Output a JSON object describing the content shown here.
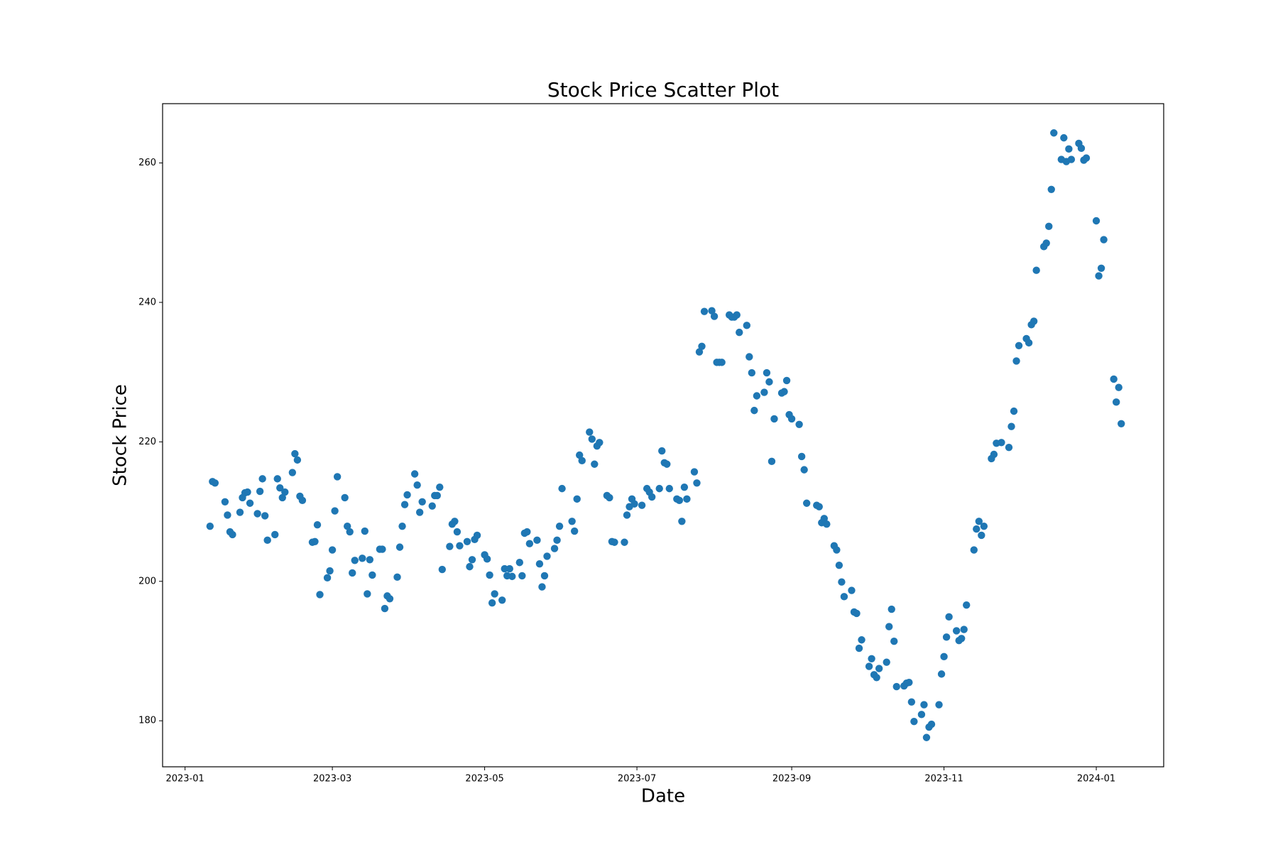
{
  "chart_data": {
    "type": "scatter",
    "title": "Stock Price Scatter Plot",
    "x_label": "Date",
    "y_label": "Stock Price",
    "color": "#1f77b4",
    "x": [
      "2023-01-11",
      "2023-01-12",
      "2023-01-13",
      "2023-01-17",
      "2023-01-18",
      "2023-01-19",
      "2023-01-20",
      "2023-01-23",
      "2023-01-24",
      "2023-01-25",
      "2023-01-26",
      "2023-01-27",
      "2023-01-30",
      "2023-01-31",
      "2023-02-01",
      "2023-02-02",
      "2023-02-03",
      "2023-02-06",
      "2023-02-07",
      "2023-02-08",
      "2023-02-09",
      "2023-02-10",
      "2023-02-13",
      "2023-02-14",
      "2023-02-15",
      "2023-02-16",
      "2023-02-17",
      "2023-02-21",
      "2023-02-22",
      "2023-02-23",
      "2023-02-24",
      "2023-02-27",
      "2023-02-28",
      "2023-03-01",
      "2023-03-02",
      "2023-03-03",
      "2023-03-06",
      "2023-03-07",
      "2023-03-08",
      "2023-03-09",
      "2023-03-10",
      "2023-03-13",
      "2023-03-14",
      "2023-03-15",
      "2023-03-16",
      "2023-03-17",
      "2023-03-20",
      "2023-03-21",
      "2023-03-22",
      "2023-03-23",
      "2023-03-24",
      "2023-03-27",
      "2023-03-28",
      "2023-03-29",
      "2023-03-30",
      "2023-03-31",
      "2023-04-03",
      "2023-04-04",
      "2023-04-05",
      "2023-04-06",
      "2023-04-10",
      "2023-04-11",
      "2023-04-12",
      "2023-04-13",
      "2023-04-14",
      "2023-04-17",
      "2023-04-18",
      "2023-04-19",
      "2023-04-20",
      "2023-04-21",
      "2023-04-24",
      "2023-04-25",
      "2023-04-26",
      "2023-04-27",
      "2023-04-28",
      "2023-05-01",
      "2023-05-02",
      "2023-05-03",
      "2023-05-04",
      "2023-05-05",
      "2023-05-08",
      "2023-05-09",
      "2023-05-10",
      "2023-05-11",
      "2023-05-12",
      "2023-05-15",
      "2023-05-16",
      "2023-05-17",
      "2023-05-18",
      "2023-05-19",
      "2023-05-22",
      "2023-05-23",
      "2023-05-24",
      "2023-05-25",
      "2023-05-26",
      "2023-05-29",
      "2023-05-30",
      "2023-05-31",
      "2023-06-01",
      "2023-06-05",
      "2023-06-06",
      "2023-06-07",
      "2023-06-08",
      "2023-06-09",
      "2023-06-12",
      "2023-06-13",
      "2023-06-14",
      "2023-06-15",
      "2023-06-16",
      "2023-06-19",
      "2023-06-20",
      "2023-06-21",
      "2023-06-22",
      "2023-06-26",
      "2023-06-27",
      "2023-06-28",
      "2023-06-29",
      "2023-06-30",
      "2023-07-03",
      "2023-07-05",
      "2023-07-06",
      "2023-07-07",
      "2023-07-10",
      "2023-07-11",
      "2023-07-12",
      "2023-07-13",
      "2023-07-14",
      "2023-07-17",
      "2023-07-18",
      "2023-07-19",
      "2023-07-20",
      "2023-07-21",
      "2023-07-24",
      "2023-07-25",
      "2023-07-26",
      "2023-07-27",
      "2023-07-28",
      "2023-07-31",
      "2023-08-01",
      "2023-08-02",
      "2023-08-03",
      "2023-08-04",
      "2023-08-07",
      "2023-08-08",
      "2023-08-09",
      "2023-08-10",
      "2023-08-11",
      "2023-08-14",
      "2023-08-15",
      "2023-08-16",
      "2023-08-17",
      "2023-08-18",
      "2023-08-21",
      "2023-08-22",
      "2023-08-23",
      "2023-08-24",
      "2023-08-25",
      "2023-08-28",
      "2023-08-29",
      "2023-08-30",
      "2023-08-31",
      "2023-09-01",
      "2023-09-04",
      "2023-09-05",
      "2023-09-06",
      "2023-09-07",
      "2023-09-11",
      "2023-09-12",
      "2023-09-13",
      "2023-09-14",
      "2023-09-15",
      "2023-09-18",
      "2023-09-19",
      "2023-09-20",
      "2023-09-21",
      "2023-09-22",
      "2023-09-25",
      "2023-09-26",
      "2023-09-27",
      "2023-09-28",
      "2023-09-29",
      "2023-10-02",
      "2023-10-03",
      "2023-10-04",
      "2023-10-05",
      "2023-10-06",
      "2023-10-09",
      "2023-10-10",
      "2023-10-11",
      "2023-10-12",
      "2023-10-13",
      "2023-10-16",
      "2023-10-17",
      "2023-10-18",
      "2023-10-19",
      "2023-10-20",
      "2023-10-23",
      "2023-10-24",
      "2023-10-25",
      "2023-10-26",
      "2023-10-27",
      "2023-10-30",
      "2023-10-31",
      "2023-11-01",
      "2023-11-02",
      "2023-11-03",
      "2023-11-06",
      "2023-11-07",
      "2023-11-08",
      "2023-11-09",
      "2023-11-10",
      "2023-11-13",
      "2023-11-14",
      "2023-11-15",
      "2023-11-16",
      "2023-11-17",
      "2023-11-20",
      "2023-11-21",
      "2023-11-22",
      "2023-11-24",
      "2023-11-27",
      "2023-11-28",
      "2023-11-29",
      "2023-11-30",
      "2023-12-01",
      "2023-12-04",
      "2023-12-05",
      "2023-12-06",
      "2023-12-07",
      "2023-12-08",
      "2023-12-11",
      "2023-12-12",
      "2023-12-13",
      "2023-12-14",
      "2023-12-15",
      "2023-12-18",
      "2023-12-19",
      "2023-12-20",
      "2023-12-21",
      "2023-12-22",
      "2023-12-25",
      "2023-12-26",
      "2023-12-27",
      "2023-12-28",
      "2024-01-01",
      "2024-01-02",
      "2024-01-03",
      "2024-01-04",
      "2024-01-08",
      "2024-01-09",
      "2024-01-10",
      "2024-01-11"
    ],
    "values": [
      207.9,
      214.3,
      214.1,
      211.4,
      209.5,
      207.1,
      206.7,
      209.9,
      212.0,
      212.7,
      212.8,
      211.2,
      209.7,
      212.9,
      214.7,
      209.4,
      205.9,
      206.7,
      214.7,
      213.4,
      212.0,
      212.8,
      215.6,
      218.3,
      217.4,
      212.2,
      211.6,
      205.6,
      205.7,
      208.1,
      198.1,
      200.5,
      201.5,
      204.5,
      210.1,
      215.0,
      212.0,
      207.9,
      207.1,
      201.2,
      203.0,
      203.3,
      207.2,
      198.2,
      203.1,
      200.9,
      204.6,
      204.6,
      196.1,
      197.9,
      197.5,
      200.6,
      204.9,
      207.9,
      211.0,
      212.4,
      215.4,
      213.8,
      209.9,
      211.4,
      210.8,
      212.3,
      212.3,
      213.5,
      201.7,
      205.0,
      208.2,
      208.6,
      207.1,
      205.1,
      205.7,
      202.1,
      203.1,
      206.0,
      206.6,
      203.8,
      203.2,
      200.9,
      196.9,
      198.2,
      197.3,
      201.8,
      200.8,
      201.8,
      200.7,
      202.7,
      200.8,
      206.9,
      207.1,
      205.4,
      205.9,
      202.5,
      199.2,
      200.8,
      203.6,
      204.7,
      205.9,
      207.9,
      213.3,
      208.6,
      207.2,
      211.8,
      218.1,
      217.3,
      221.4,
      220.4,
      216.8,
      219.4,
      219.9,
      212.3,
      212.0,
      205.7,
      205.6,
      205.6,
      209.5,
      210.7,
      211.8,
      211.1,
      210.9,
      213.3,
      212.8,
      212.1,
      213.3,
      218.7,
      217.0,
      216.8,
      213.3,
      211.8,
      211.6,
      208.6,
      213.5,
      211.8,
      215.7,
      214.1,
      232.9,
      233.7,
      238.7,
      238.8,
      238.0,
      231.4,
      231.4,
      231.4,
      238.2,
      237.9,
      237.9,
      238.2,
      235.7,
      236.7,
      232.2,
      229.9,
      224.5,
      226.6,
      227.1,
      229.9,
      228.6,
      217.2,
      223.3,
      227.0,
      227.2,
      228.8,
      223.9,
      223.3,
      222.5,
      217.9,
      216.0,
      211.2,
      210.9,
      210.7,
      208.4,
      209.0,
      208.2,
      205.1,
      204.5,
      202.3,
      199.9,
      197.8,
      198.7,
      195.6,
      195.4,
      190.4,
      191.6,
      187.8,
      188.9,
      186.6,
      186.2,
      187.5,
      188.4,
      193.5,
      196.0,
      191.4,
      184.9,
      185.0,
      185.4,
      185.5,
      182.7,
      179.9,
      180.9,
      182.3,
      177.6,
      179.1,
      179.5,
      182.3,
      186.7,
      189.2,
      192.0,
      194.9,
      192.9,
      191.5,
      191.8,
      193.1,
      196.6,
      204.5,
      207.5,
      208.6,
      206.6,
      207.9,
      217.6,
      218.2,
      219.8,
      219.9,
      219.2,
      222.2,
      224.4,
      231.6,
      233.8,
      234.8,
      234.2,
      236.8,
      237.3,
      244.6,
      248.0,
      248.5,
      250.9,
      256.2,
      264.3,
      260.5,
      263.6,
      260.2,
      262.0,
      260.5,
      262.8,
      262.1,
      260.4,
      260.7,
      251.7,
      243.8,
      244.9,
      249.0,
      229.0,
      225.7,
      227.8,
      222.6
    ],
    "xlim": [
      "2022-12-23",
      "2024-01-28"
    ],
    "xticks": [
      "2023-01",
      "2023-03",
      "2023-05",
      "2023-07",
      "2023-09",
      "2023-11",
      "2024-01"
    ],
    "ylim": [
      173.4,
      268.5
    ],
    "yticks": [
      180,
      200,
      220,
      240,
      260
    ],
    "grid": false
  }
}
